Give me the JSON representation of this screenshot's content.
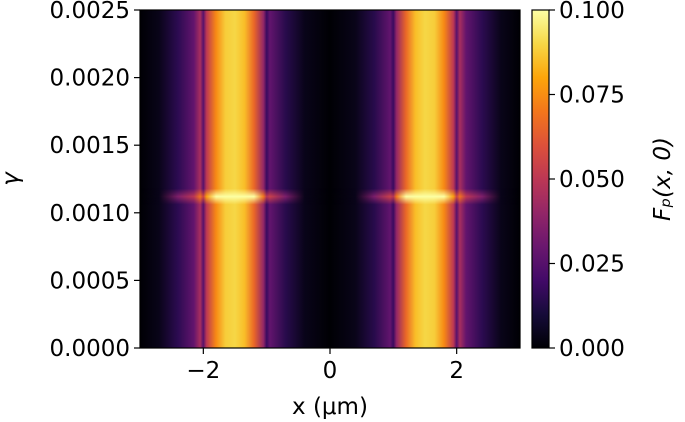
{
  "chart_data": {
    "type": "heatmap",
    "title": "",
    "xlabel": "x (μm)",
    "ylabel": "γ",
    "colorbar_label": "Fₚ(x, 0)",
    "colormap": "inferno",
    "xlim": [
      -3,
      3
    ],
    "ylim": [
      0.0,
      0.0025
    ],
    "xticks": [
      -2,
      0,
      2
    ],
    "xtick_labels": [
      "−2",
      "0",
      "2"
    ],
    "yticks": [
      0.0,
      0.0005,
      0.001,
      0.0015,
      0.002,
      0.0025
    ],
    "ytick_labels": [
      "0.0000",
      "0.0005",
      "0.0010",
      "0.0015",
      "0.0020",
      "0.0025"
    ],
    "colorbar_range": [
      0.0,
      0.1
    ],
    "colorbar_ticks": [
      0.0,
      0.025,
      0.05,
      0.075,
      0.1
    ],
    "colorbar_tick_labels": [
      "0.000",
      "0.025",
      "0.050",
      "0.075",
      "0.100"
    ],
    "x_profile": [
      {
        "x": -3.0,
        "value": 0.0
      },
      {
        "x": -2.7,
        "value": 0.004
      },
      {
        "x": -2.4,
        "value": 0.015
      },
      {
        "x": -2.15,
        "value": 0.028
      },
      {
        "x": -2.05,
        "value": 0.045
      },
      {
        "x": -2.0,
        "value": 0.025
      },
      {
        "x": -1.95,
        "value": 0.05
      },
      {
        "x": -1.8,
        "value": 0.074
      },
      {
        "x": -1.65,
        "value": 0.088
      },
      {
        "x": -1.5,
        "value": 0.09
      },
      {
        "x": -1.35,
        "value": 0.085
      },
      {
        "x": -1.2,
        "value": 0.066
      },
      {
        "x": -1.05,
        "value": 0.04
      },
      {
        "x": -1.0,
        "value": 0.018
      },
      {
        "x": -0.95,
        "value": 0.028
      },
      {
        "x": -0.7,
        "value": 0.014
      },
      {
        "x": -0.4,
        "value": 0.004
      },
      {
        "x": 0.0,
        "value": 0.0
      },
      {
        "x": 0.4,
        "value": 0.004
      },
      {
        "x": 0.7,
        "value": 0.014
      },
      {
        "x": 0.95,
        "value": 0.028
      },
      {
        "x": 1.0,
        "value": 0.018
      },
      {
        "x": 1.05,
        "value": 0.04
      },
      {
        "x": 1.2,
        "value": 0.066
      },
      {
        "x": 1.35,
        "value": 0.085
      },
      {
        "x": 1.5,
        "value": 0.09
      },
      {
        "x": 1.65,
        "value": 0.088
      },
      {
        "x": 1.8,
        "value": 0.074
      },
      {
        "x": 1.95,
        "value": 0.05
      },
      {
        "x": 2.0,
        "value": 0.025
      },
      {
        "x": 2.05,
        "value": 0.045
      },
      {
        "x": 2.15,
        "value": 0.028
      },
      {
        "x": 2.4,
        "value": 0.015
      },
      {
        "x": 2.7,
        "value": 0.004
      },
      {
        "x": 3.0,
        "value": 0.0
      }
    ],
    "resonance": {
      "gamma": 0.00112,
      "peak_value": 0.1,
      "peak_x": [
        -1.5,
        1.5
      ]
    }
  }
}
